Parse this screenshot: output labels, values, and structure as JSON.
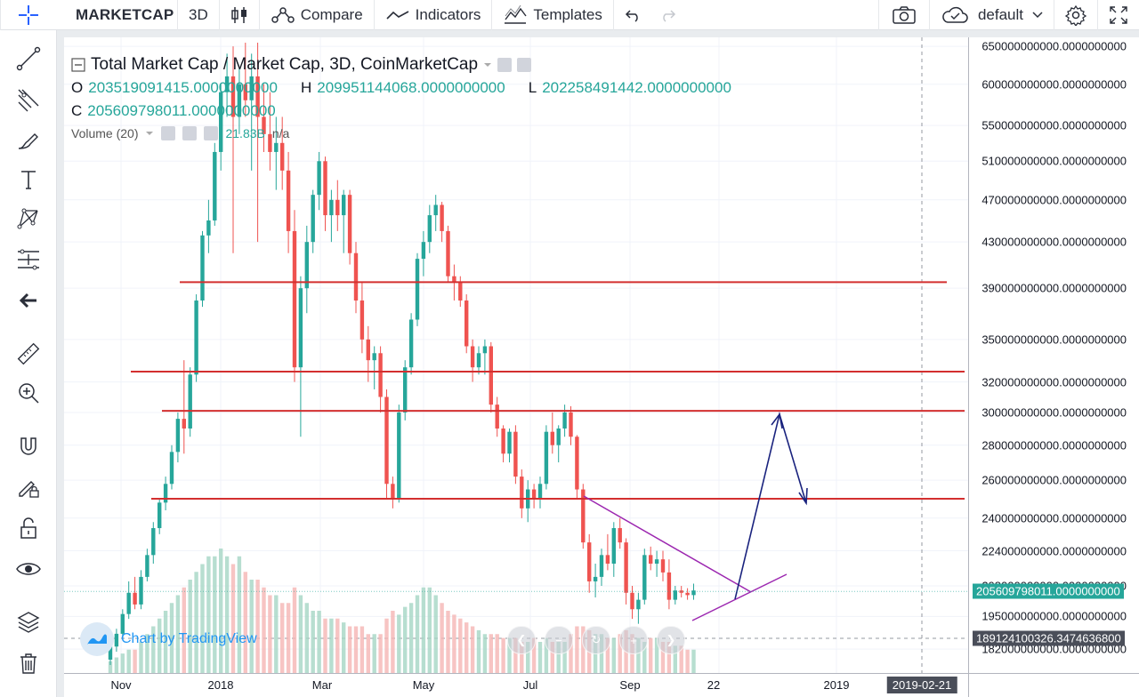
{
  "toolbar": {
    "symbol": "MARKETCAP",
    "interval": "3D",
    "compare": "Compare",
    "indicators": "Indicators",
    "templates": "Templates",
    "layout": "default"
  },
  "legend": {
    "title": "Total Market Cap / Market Cap, 3D, CoinMarketCap",
    "o_key": "O",
    "o_val": "203519091415.0000000000",
    "h_key": "H",
    "h_val": "209951144068.0000000000",
    "l_key": "L",
    "l_val": "202258491442.0000000000",
    "c_key": "C",
    "c_val": "205609798011.0000000000",
    "volume_label": "Volume (20)",
    "volume_val": "21.83B",
    "volume_ma": "n/a"
  },
  "watermark": "Chart by TradingView",
  "price_axis": {
    "labels": [
      "650000000000.0000000000",
      "600000000000.0000000000",
      "550000000000.0000000000",
      "510000000000.0000000000",
      "470000000000.0000000000",
      "430000000000.0000000000",
      "390000000000.0000000000",
      "350000000000.0000000000",
      "320000000000.0000000000",
      "300000000000.0000000000",
      "280000000000.0000000000",
      "260000000000.0000000000",
      "240000000000.0000000000",
      "224000000000.0000000000",
      "208000000000.0000000000",
      "195000000000.0000000000",
      "182000000000.0000000000"
    ],
    "current_price": "205609798011.0000000000",
    "crosshair_price": "189124100326.3474636800"
  },
  "time_axis": {
    "labels": [
      "Nov",
      "2018",
      "Mar",
      "May",
      "Jul",
      "Sep",
      "22",
      "2019"
    ],
    "crosshair_date": "2019-02-21"
  },
  "colors": {
    "up": "#26a69a",
    "down": "#ef5350",
    "level_line": "#d32f2f",
    "triangle": "#9c27b0",
    "arrow": "#1a237e"
  },
  "chart_data": {
    "type": "candlestick",
    "interval": "3D",
    "y_scale": "log",
    "ylim": [
      178000000000,
      655000000000
    ],
    "horizontal_levels": [
      395000000000,
      327000000000,
      301000000000,
      250000000000
    ],
    "candles": [
      {
        "o": 178,
        "h": 185,
        "l": 176,
        "c": 183
      },
      {
        "o": 183,
        "h": 190,
        "l": 181,
        "c": 188
      },
      {
        "o": 188,
        "h": 198,
        "l": 186,
        "c": 196
      },
      {
        "o": 196,
        "h": 210,
        "l": 194,
        "c": 205
      },
      {
        "o": 205,
        "h": 212,
        "l": 198,
        "c": 200
      },
      {
        "o": 200,
        "h": 215,
        "l": 198,
        "c": 212
      },
      {
        "o": 212,
        "h": 225,
        "l": 210,
        "c": 222
      },
      {
        "o": 222,
        "h": 238,
        "l": 218,
        "c": 235
      },
      {
        "o": 235,
        "h": 250,
        "l": 232,
        "c": 248
      },
      {
        "o": 248,
        "h": 262,
        "l": 244,
        "c": 258
      },
      {
        "o": 258,
        "h": 280,
        "l": 255,
        "c": 276
      },
      {
        "o": 276,
        "h": 300,
        "l": 270,
        "c": 296
      },
      {
        "o": 296,
        "h": 335,
        "l": 275,
        "c": 290
      },
      {
        "o": 290,
        "h": 330,
        "l": 285,
        "c": 325
      },
      {
        "o": 325,
        "h": 385,
        "l": 320,
        "c": 380
      },
      {
        "o": 380,
        "h": 440,
        "l": 375,
        "c": 436
      },
      {
        "o": 436,
        "h": 470,
        "l": 420,
        "c": 450
      },
      {
        "o": 450,
        "h": 530,
        "l": 445,
        "c": 520
      },
      {
        "o": 520,
        "h": 600,
        "l": 500,
        "c": 590
      },
      {
        "o": 590,
        "h": 640,
        "l": 560,
        "c": 610
      },
      {
        "o": 610,
        "h": 650,
        "l": 420,
        "c": 560
      },
      {
        "o": 560,
        "h": 620,
        "l": 540,
        "c": 600
      },
      {
        "o": 600,
        "h": 655,
        "l": 560,
        "c": 580
      },
      {
        "o": 580,
        "h": 640,
        "l": 500,
        "c": 610
      },
      {
        "o": 610,
        "h": 655,
        "l": 430,
        "c": 560
      },
      {
        "o": 560,
        "h": 600,
        "l": 520,
        "c": 540
      },
      {
        "o": 540,
        "h": 590,
        "l": 500,
        "c": 520
      },
      {
        "o": 520,
        "h": 560,
        "l": 480,
        "c": 530
      },
      {
        "o": 530,
        "h": 560,
        "l": 480,
        "c": 500
      },
      {
        "o": 500,
        "h": 520,
        "l": 420,
        "c": 440
      },
      {
        "o": 440,
        "h": 460,
        "l": 320,
        "c": 330
      },
      {
        "o": 330,
        "h": 400,
        "l": 285,
        "c": 390
      },
      {
        "o": 390,
        "h": 445,
        "l": 370,
        "c": 430
      },
      {
        "o": 430,
        "h": 480,
        "l": 420,
        "c": 475
      },
      {
        "o": 475,
        "h": 520,
        "l": 460,
        "c": 510
      },
      {
        "o": 510,
        "h": 515,
        "l": 440,
        "c": 455
      },
      {
        "o": 455,
        "h": 480,
        "l": 430,
        "c": 470
      },
      {
        "o": 470,
        "h": 490,
        "l": 440,
        "c": 455
      },
      {
        "o": 455,
        "h": 480,
        "l": 420,
        "c": 475
      },
      {
        "o": 475,
        "h": 480,
        "l": 410,
        "c": 420
      },
      {
        "o": 420,
        "h": 430,
        "l": 370,
        "c": 380
      },
      {
        "o": 380,
        "h": 395,
        "l": 340,
        "c": 350
      },
      {
        "o": 350,
        "h": 360,
        "l": 320,
        "c": 335
      },
      {
        "o": 335,
        "h": 345,
        "l": 315,
        "c": 340
      },
      {
        "o": 340,
        "h": 345,
        "l": 300,
        "c": 310
      },
      {
        "o": 310,
        "h": 315,
        "l": 250,
        "c": 258
      },
      {
        "o": 258,
        "h": 262,
        "l": 245,
        "c": 250
      },
      {
        "o": 250,
        "h": 305,
        "l": 248,
        "c": 300
      },
      {
        "o": 300,
        "h": 335,
        "l": 295,
        "c": 330
      },
      {
        "o": 330,
        "h": 370,
        "l": 325,
        "c": 365
      },
      {
        "o": 365,
        "h": 420,
        "l": 360,
        "c": 415
      },
      {
        "o": 415,
        "h": 440,
        "l": 400,
        "c": 430
      },
      {
        "o": 430,
        "h": 465,
        "l": 420,
        "c": 455
      },
      {
        "o": 455,
        "h": 475,
        "l": 440,
        "c": 465
      },
      {
        "o": 465,
        "h": 468,
        "l": 430,
        "c": 440
      },
      {
        "o": 440,
        "h": 445,
        "l": 395,
        "c": 400
      },
      {
        "o": 400,
        "h": 410,
        "l": 380,
        "c": 395
      },
      {
        "o": 395,
        "h": 400,
        "l": 375,
        "c": 380
      },
      {
        "o": 380,
        "h": 385,
        "l": 340,
        "c": 345
      },
      {
        "o": 345,
        "h": 350,
        "l": 320,
        "c": 330
      },
      {
        "o": 330,
        "h": 345,
        "l": 325,
        "c": 340
      },
      {
        "o": 340,
        "h": 350,
        "l": 325,
        "c": 345
      },
      {
        "o": 345,
        "h": 348,
        "l": 300,
        "c": 305
      },
      {
        "o": 305,
        "h": 310,
        "l": 285,
        "c": 290
      },
      {
        "o": 290,
        "h": 292,
        "l": 270,
        "c": 275
      },
      {
        "o": 275,
        "h": 290,
        "l": 270,
        "c": 288
      },
      {
        "o": 288,
        "h": 292,
        "l": 258,
        "c": 262
      },
      {
        "o": 262,
        "h": 266,
        "l": 240,
        "c": 245
      },
      {
        "o": 245,
        "h": 260,
        "l": 238,
        "c": 255
      },
      {
        "o": 255,
        "h": 258,
        "l": 245,
        "c": 250
      },
      {
        "o": 250,
        "h": 262,
        "l": 245,
        "c": 258
      },
      {
        "o": 258,
        "h": 292,
        "l": 255,
        "c": 288
      },
      {
        "o": 288,
        "h": 300,
        "l": 275,
        "c": 280
      },
      {
        "o": 280,
        "h": 292,
        "l": 270,
        "c": 290
      },
      {
        "o": 290,
        "h": 305,
        "l": 285,
        "c": 300
      },
      {
        "o": 300,
        "h": 304,
        "l": 280,
        "c": 285
      },
      {
        "o": 285,
        "h": 286,
        "l": 250,
        "c": 255
      },
      {
        "o": 255,
        "h": 258,
        "l": 225,
        "c": 228
      },
      {
        "o": 228,
        "h": 232,
        "l": 205,
        "c": 210
      },
      {
        "o": 210,
        "h": 218,
        "l": 203,
        "c": 212
      },
      {
        "o": 212,
        "h": 225,
        "l": 208,
        "c": 222
      },
      {
        "o": 222,
        "h": 232,
        "l": 215,
        "c": 218
      },
      {
        "o": 218,
        "h": 238,
        "l": 212,
        "c": 235
      },
      {
        "o": 235,
        "h": 240,
        "l": 225,
        "c": 228
      },
      {
        "o": 228,
        "h": 230,
        "l": 200,
        "c": 205
      },
      {
        "o": 205,
        "h": 208,
        "l": 194,
        "c": 198
      },
      {
        "o": 198,
        "h": 205,
        "l": 192,
        "c": 202
      },
      {
        "o": 202,
        "h": 225,
        "l": 200,
        "c": 222
      },
      {
        "o": 222,
        "h": 226,
        "l": 215,
        "c": 218
      },
      {
        "o": 218,
        "h": 224,
        "l": 212,
        "c": 220
      },
      {
        "o": 220,
        "h": 224,
        "l": 210,
        "c": 214
      },
      {
        "o": 214,
        "h": 220,
        "l": 198,
        "c": 202
      },
      {
        "o": 202,
        "h": 208,
        "l": 200,
        "c": 206
      },
      {
        "o": 206,
        "h": 208,
        "l": 203,
        "c": 205
      },
      {
        "o": 205,
        "h": 207,
        "l": 202,
        "c": 204
      },
      {
        "o": 204,
        "h": 209,
        "l": 202,
        "c": 206
      }
    ],
    "volume": [
      3,
      4,
      5,
      6,
      6,
      8,
      10,
      12,
      14,
      16,
      18,
      20,
      22,
      24,
      26,
      28,
      30,
      30,
      32,
      30,
      28,
      30,
      26,
      24,
      24,
      22,
      20,
      20,
      18,
      18,
      22,
      20,
      18,
      16,
      16,
      14,
      14,
      14,
      13,
      12,
      12,
      12,
      10,
      10,
      10,
      14,
      16,
      15,
      17,
      18,
      20,
      22,
      22,
      20,
      18,
      16,
      15,
      14,
      13,
      12,
      11,
      10,
      10,
      10,
      9,
      9,
      9,
      8,
      8,
      9,
      8,
      9,
      8,
      8,
      8,
      10,
      12,
      12,
      11,
      10,
      10,
      9,
      9,
      10,
      11,
      10,
      9,
      8,
      9,
      9,
      8,
      8,
      7,
      7,
      6,
      6
    ]
  }
}
